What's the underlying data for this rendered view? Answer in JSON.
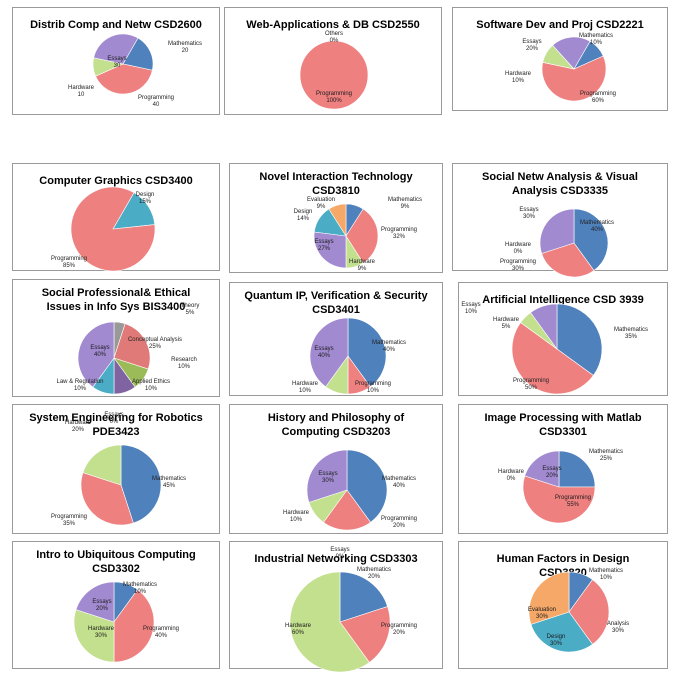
{
  "colors": {
    "Mathematics": "#4f81bd",
    "Programming": "#ef8080",
    "Hardware": "#c2e08d",
    "Essays": "#a18ad0",
    "Others": "#4bacc6",
    "Design": "#4bacc6",
    "Evaluation": "#f6a868",
    "Conceptual Analysis": "#e07a78",
    "Research": "#9bbb59",
    "Applied Ethics": "#8064a2",
    "Law & Regulation": "#4bacc6",
    "Analysis": "#ef8080"
  },
  "chart_data": [
    {
      "type": "pie",
      "title": "Distrib Comp and Netw CSD2600",
      "slices": [
        {
          "label": "Mathematics",
          "value": 20,
          "text": "20"
        },
        {
          "label": "Programming",
          "value": 40,
          "text": "40"
        },
        {
          "label": "Hardware",
          "value": 10,
          "text": "10"
        },
        {
          "label": "Essays",
          "value": 30,
          "text": "30"
        }
      ]
    },
    {
      "type": "pie",
      "title": "Web-Applications & DB CSD2550",
      "slices": [
        {
          "label": "Programming",
          "value": 100,
          "text": "100%"
        },
        {
          "label": "Others",
          "value": 0,
          "text": "0%"
        }
      ]
    },
    {
      "type": "pie",
      "title": "Software Dev and Proj CSD2221",
      "slices": [
        {
          "label": "Mathematics",
          "value": 10,
          "text": "10%"
        },
        {
          "label": "Programming",
          "value": 60,
          "text": "60%"
        },
        {
          "label": "Hardware",
          "value": 10,
          "text": "10%"
        },
        {
          "label": "Essays",
          "value": 20,
          "text": "20%"
        }
      ]
    },
    {
      "type": "pie",
      "title": "Computer Graphics CSD3400",
      "slices": [
        {
          "label": "Design",
          "value": 15,
          "text": "15%"
        },
        {
          "label": "Programming",
          "value": 85,
          "text": "85%"
        }
      ]
    },
    {
      "type": "pie",
      "title": "Novel Interaction Technology CSD3810",
      "slices": [
        {
          "label": "Mathematics",
          "value": 9,
          "text": "9%"
        },
        {
          "label": "Programming",
          "value": 32,
          "text": "32%"
        },
        {
          "label": "Hardware",
          "value": 9,
          "text": "9%"
        },
        {
          "label": "Essays",
          "value": 27,
          "text": "27%"
        },
        {
          "label": "Design",
          "value": 14,
          "text": "14%"
        },
        {
          "label": "Evaluation",
          "value": 9,
          "text": "9%"
        }
      ]
    },
    {
      "type": "pie",
      "title": "Social Netw Analysis & Visual Analysis CSD3335",
      "slices": [
        {
          "label": "Mathematics",
          "value": 40,
          "text": "40%"
        },
        {
          "label": "Programming",
          "value": 30,
          "text": "30%"
        },
        {
          "label": "Hardware",
          "value": 0,
          "text": "0%"
        },
        {
          "label": "Essays",
          "value": 30,
          "text": "30%"
        }
      ]
    },
    {
      "type": "pie",
      "title": "Social Professional& Ethical Issues in Info Sys BIS3400",
      "slices": [
        {
          "label": "Theory",
          "value": 5,
          "text": "5%"
        },
        {
          "label": "Conceptual Analysis",
          "value": 25,
          "text": "25%"
        },
        {
          "label": "Research",
          "value": 10,
          "text": "10%"
        },
        {
          "label": "Applied Ethics",
          "value": 10,
          "text": "10%"
        },
        {
          "label": "Law & Regulation",
          "value": 10,
          "text": "10%"
        },
        {
          "label": "Essays",
          "value": 40,
          "text": "40%"
        }
      ]
    },
    {
      "type": "pie",
      "title": "Quantum IP, Verification & Security CSD3401",
      "slices": [
        {
          "label": "Mathematics",
          "value": 40,
          "text": "40%"
        },
        {
          "label": "Programming",
          "value": 10,
          "text": "10%"
        },
        {
          "label": "Hardware",
          "value": 10,
          "text": "10%"
        },
        {
          "label": "Essays",
          "value": 40,
          "text": "40%"
        }
      ]
    },
    {
      "type": "pie",
      "title": "Artificial Intelligence CSD 3939",
      "slices": [
        {
          "label": "Mathematics",
          "value": 35,
          "text": "35%"
        },
        {
          "label": "Programming",
          "value": 50,
          "text": "50%"
        },
        {
          "label": "Hardware",
          "value": 5,
          "text": "5%"
        },
        {
          "label": "Essays",
          "value": 10,
          "text": "10%"
        }
      ]
    },
    {
      "type": "pie",
      "title": "System Engineering for Robotics PDE3423",
      "slices": [
        {
          "label": "Mathematics",
          "value": 45,
          "text": "45%"
        },
        {
          "label": "Programming",
          "value": 35,
          "text": "35%"
        },
        {
          "label": "Hardware",
          "value": 20,
          "text": "20%"
        },
        {
          "label": "Essays",
          "value": 0,
          "text": "0%"
        }
      ]
    },
    {
      "type": "pie",
      "title": "History and Philosophy of Computing CSD3203",
      "slices": [
        {
          "label": "Mathematics",
          "value": 40,
          "text": "40%"
        },
        {
          "label": "Programming",
          "value": 20,
          "text": "20%"
        },
        {
          "label": "Hardware",
          "value": 10,
          "text": "10%"
        },
        {
          "label": "Essays",
          "value": 30,
          "text": "30%"
        }
      ]
    },
    {
      "type": "pie",
      "title": "Image Processing with Matlab CSD3301",
      "slices": [
        {
          "label": "Mathematics",
          "value": 25,
          "text": "25%"
        },
        {
          "label": "Programming",
          "value": 55,
          "text": "55%"
        },
        {
          "label": "Hardware",
          "value": 0,
          "text": "0%"
        },
        {
          "label": "Essays",
          "value": 20,
          "text": "20%"
        }
      ]
    },
    {
      "type": "pie",
      "title": "Intro to Ubiquitous Computing CSD3302",
      "slices": [
        {
          "label": "Mathematics",
          "value": 10,
          "text": "10%"
        },
        {
          "label": "Programming",
          "value": 40,
          "text": "40%"
        },
        {
          "label": "Hardware",
          "value": 30,
          "text": "30%"
        },
        {
          "label": "Essays",
          "value": 20,
          "text": "20%"
        }
      ]
    },
    {
      "type": "pie",
      "title": "Industrial Networking CSD3303",
      "slices": [
        {
          "label": "Mathematics",
          "value": 20,
          "text": "20%"
        },
        {
          "label": "Programming",
          "value": 20,
          "text": "20%"
        },
        {
          "label": "Hardware",
          "value": 60,
          "text": "60%"
        },
        {
          "label": "Essays",
          "value": 0,
          "text": "0%"
        }
      ]
    },
    {
      "type": "pie",
      "title": "Human Factors in Design CSD3820",
      "slices": [
        {
          "label": "Mathematics",
          "value": 10,
          "text": "10%"
        },
        {
          "label": "Analysis",
          "value": 30,
          "text": "30%"
        },
        {
          "label": "Design",
          "value": 30,
          "text": "30%"
        },
        {
          "label": "Evaluation",
          "value": 30,
          "text": "30%"
        }
      ]
    }
  ]
}
